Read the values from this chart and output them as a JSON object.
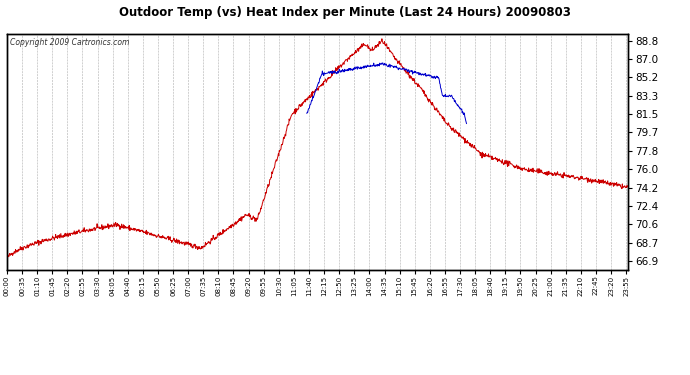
{
  "title": "Outdoor Temp (vs) Heat Index per Minute (Last 24 Hours) 20090803",
  "copyright": "Copyright 2009 Cartronics.com",
  "background_color": "#ffffff",
  "plot_bg_color": "#ffffff",
  "grid_color": "#999999",
  "line_color_red": "#cc0000",
  "line_color_blue": "#0000cc",
  "yticks": [
    66.9,
    68.7,
    70.6,
    72.4,
    74.2,
    76.0,
    77.8,
    79.7,
    81.5,
    83.3,
    85.2,
    87.0,
    88.8
  ],
  "ylim": [
    66.0,
    89.5
  ],
  "num_points": 1440,
  "xtick_interval": 35
}
